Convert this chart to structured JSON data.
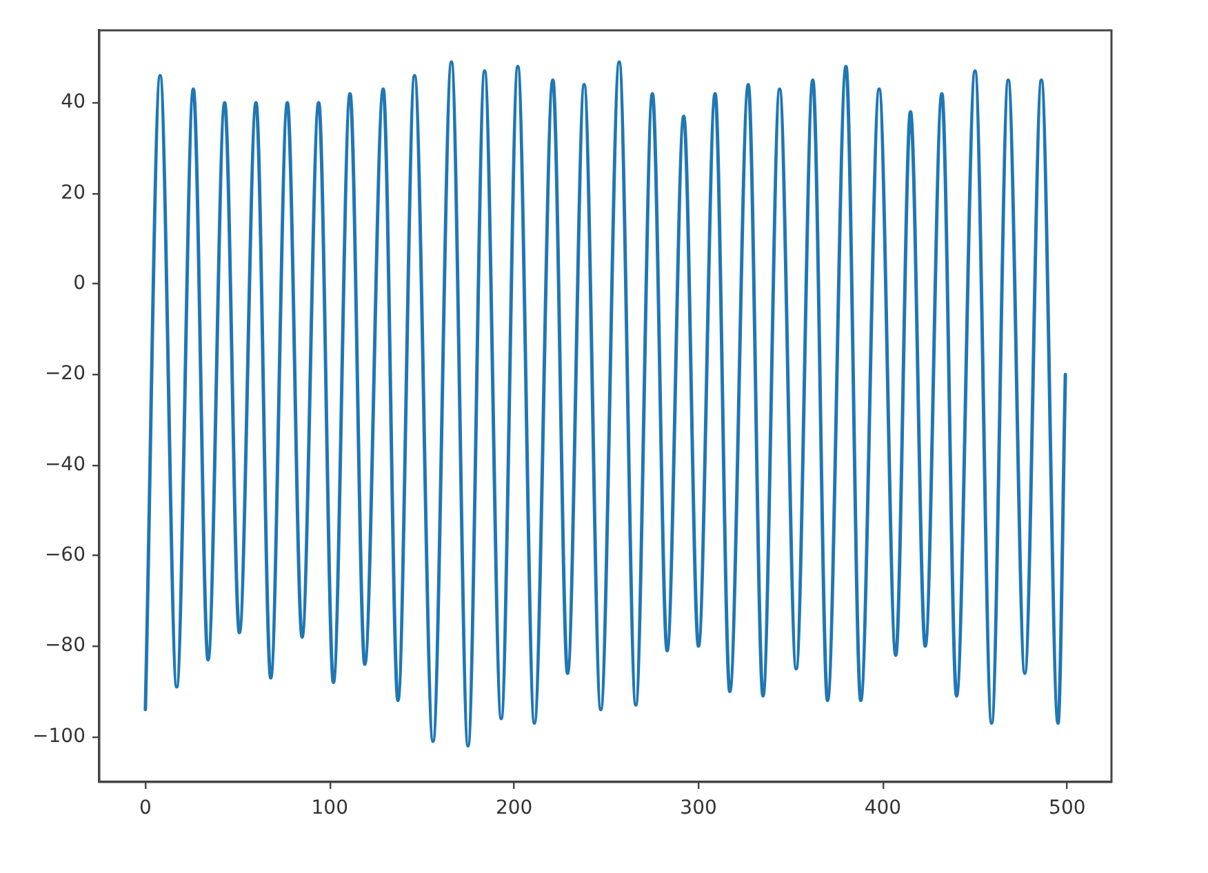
{
  "chart_data": {
    "type": "line",
    "color": "#1f77b4",
    "x": [
      0,
      8,
      17,
      26,
      34,
      43,
      51,
      60,
      68,
      77,
      85,
      94,
      102,
      111,
      119,
      129,
      137,
      146,
      156,
      166,
      175,
      184,
      193,
      202,
      211,
      221,
      229,
      238,
      247,
      257,
      266,
      275,
      283,
      292,
      300,
      309,
      317,
      327,
      335,
      344,
      353,
      362,
      370,
      380,
      388,
      398,
      407,
      415,
      423,
      432,
      440,
      450,
      459,
      468,
      477,
      486,
      495,
      499
    ],
    "values": [
      -94,
      46,
      -89,
      43,
      -83,
      40,
      -77,
      40,
      -87,
      40,
      -78,
      40,
      -88,
      42,
      -84,
      43,
      -92,
      46,
      -101,
      49,
      -102,
      47,
      -96,
      48,
      -97,
      45,
      -86,
      44,
      -94,
      49,
      -93,
      42,
      -81,
      37,
      -80,
      42,
      -90,
      44,
      -91,
      43,
      -85,
      45,
      -92,
      48,
      -92,
      43,
      -82,
      38,
      -80,
      42,
      -91,
      47,
      -97,
      45,
      -86,
      45,
      -97,
      -20
    ],
    "xlim": [
      -25,
      524
    ],
    "xticks": [
      0,
      100,
      200,
      300,
      400,
      500
    ],
    "ylim": [
      -110,
      56
    ],
    "yticks": [
      {
        "value": -100,
        "label": "−100"
      },
      {
        "value": -80,
        "label": "−80"
      },
      {
        "value": -60,
        "label": "−60"
      },
      {
        "value": -40,
        "label": "−40"
      },
      {
        "value": -20,
        "label": "−20"
      },
      0,
      20,
      40
    ]
  }
}
